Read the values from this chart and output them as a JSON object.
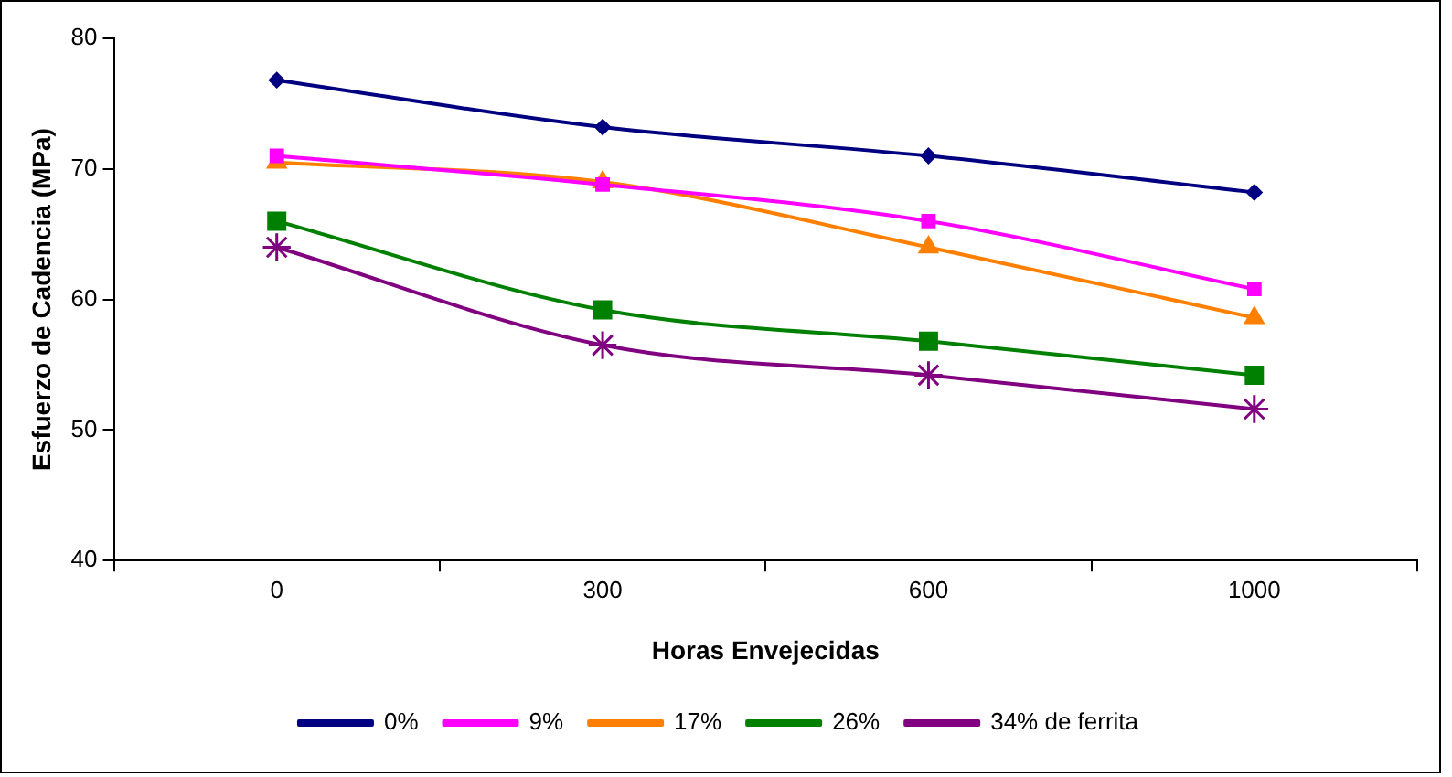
{
  "chart_data": {
    "type": "line",
    "xlabel": "Horas Envejecidas",
    "ylabel": "Esfuerzo de Cadencia (MPa)",
    "categories": [
      "0",
      "300",
      "600",
      "1000"
    ],
    "ylim": [
      40,
      80
    ],
    "yticks": [
      40,
      50,
      60,
      70,
      80
    ],
    "grid": false,
    "legend": "bottom",
    "series": [
      {
        "name": "0%",
        "color": "#000080",
        "marker": "diamond",
        "values": [
          76.8,
          73.2,
          71,
          68.2
        ]
      },
      {
        "name": "9%",
        "color": "#ff00ff",
        "marker": "square",
        "values": [
          71,
          68.8,
          66,
          60.8
        ]
      },
      {
        "name": "17%",
        "color": "#ff8000",
        "marker": "triangle",
        "values": [
          70.5,
          69,
          64,
          58.6
        ]
      },
      {
        "name": "26%",
        "color": "#008000",
        "marker": "square",
        "values": [
          66,
          59.2,
          56.8,
          54.2
        ]
      },
      {
        "name": "34% de ferrita",
        "color": "#800080",
        "marker": "cross",
        "values": [
          64,
          56.5,
          54.2,
          51.6
        ]
      }
    ]
  }
}
